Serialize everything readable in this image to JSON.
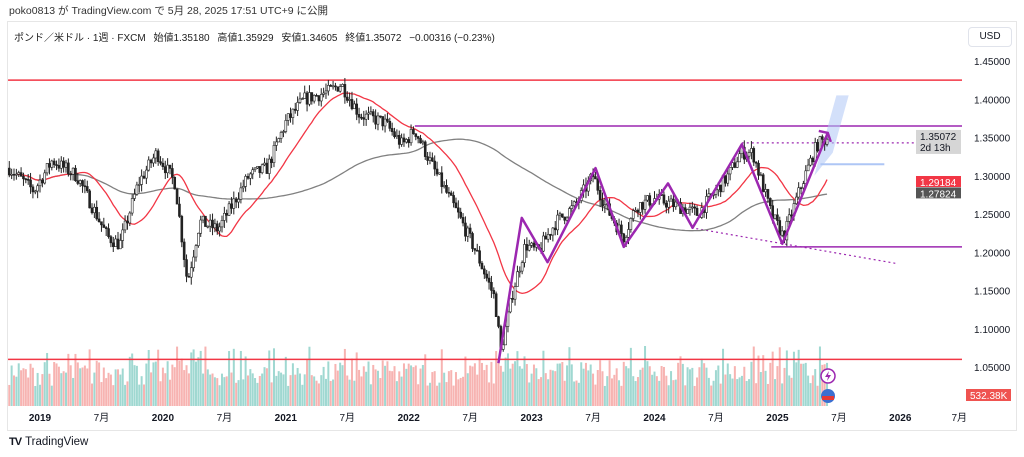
{
  "publish_line": "poko0813 が TradingView.com で 5月 28, 2025 17:51 UTC+9 に公開",
  "legend": {
    "symbol": "ポンド／米ドル · 1週 · FXCM",
    "open": "始値1.35180",
    "high": "高値1.35929",
    "low": "安値1.34605",
    "close": "終値1.35072",
    "change": "−0.00316 (−0.23%)"
  },
  "currency_button": "USD",
  "brand": "TradingView",
  "price_labels": {
    "last": "1.35072",
    "countdown": "2d 13h",
    "ma_fast": "1.29184",
    "ma_slow": "1.27824",
    "volume": "532.38K"
  },
  "colors": {
    "up": "#26a69a",
    "down": "#ef5350",
    "ma_fast": "#f23645",
    "ma_slow": "#808080",
    "annotation": "#9c27b0",
    "level": "#f23645",
    "projection": "#aec6f5"
  },
  "chart_data": {
    "type": "candlestick",
    "title": "GBP/USD Weekly",
    "yticks": [
      "1.45000",
      "1.40000",
      "1.35000",
      "1.30000",
      "1.25000",
      "1.20000",
      "1.15000",
      "1.10000",
      "1.05000"
    ],
    "ylim": [
      1.035,
      1.47
    ],
    "xlim": [
      2018.74,
      2026.5
    ],
    "xticks": [
      {
        "t": 2019,
        "label": "2019"
      },
      {
        "t": 2019.5,
        "label": "7月"
      },
      {
        "t": 2020,
        "label": "2020"
      },
      {
        "t": 2020.5,
        "label": "7月"
      },
      {
        "t": 2021,
        "label": "2021"
      },
      {
        "t": 2021.5,
        "label": "7月"
      },
      {
        "t": 2022,
        "label": "2022"
      },
      {
        "t": 2022.5,
        "label": "7月"
      },
      {
        "t": 2023,
        "label": "2023"
      },
      {
        "t": 2023.5,
        "label": "7月"
      },
      {
        "t": 2024,
        "label": "2024"
      },
      {
        "t": 2024.5,
        "label": "7月"
      },
      {
        "t": 2025,
        "label": "2025"
      },
      {
        "t": 2025.5,
        "label": "7月"
      },
      {
        "t": 2026,
        "label": "2026"
      },
      {
        "t": 2026.48,
        "label": "7月"
      }
    ],
    "price_path": [
      [
        2018.75,
        1.31
      ],
      [
        2018.95,
        1.28
      ],
      [
        2019.1,
        1.32
      ],
      [
        2019.3,
        1.3
      ],
      [
        2019.55,
        1.22
      ],
      [
        2019.65,
        1.21
      ],
      [
        2019.8,
        1.29
      ],
      [
        2019.95,
        1.33
      ],
      [
        2020.1,
        1.29
      ],
      [
        2020.2,
        1.16
      ],
      [
        2020.3,
        1.24
      ],
      [
        2020.45,
        1.23
      ],
      [
        2020.7,
        1.3
      ],
      [
        2020.85,
        1.31
      ],
      [
        2021.0,
        1.37
      ],
      [
        2021.15,
        1.4
      ],
      [
        2021.35,
        1.41
      ],
      [
        2021.45,
        1.42
      ],
      [
        2021.6,
        1.38
      ],
      [
        2021.8,
        1.37
      ],
      [
        2021.95,
        1.34
      ],
      [
        2022.05,
        1.36
      ],
      [
        2022.2,
        1.31
      ],
      [
        2022.4,
        1.25
      ],
      [
        2022.55,
        1.2
      ],
      [
        2022.7,
        1.14
      ],
      [
        2022.75,
        1.07
      ],
      [
        2022.85,
        1.15
      ],
      [
        2022.95,
        1.21
      ],
      [
        2023.05,
        1.2
      ],
      [
        2023.2,
        1.24
      ],
      [
        2023.35,
        1.26
      ],
      [
        2023.5,
        1.3
      ],
      [
        2023.6,
        1.26
      ],
      [
        2023.75,
        1.22
      ],
      [
        2023.85,
        1.26
      ],
      [
        2024.0,
        1.27
      ],
      [
        2024.2,
        1.26
      ],
      [
        2024.35,
        1.25
      ],
      [
        2024.5,
        1.28
      ],
      [
        2024.6,
        1.3
      ],
      [
        2024.7,
        1.33
      ],
      [
        2024.8,
        1.33
      ],
      [
        2024.95,
        1.25
      ],
      [
        2025.05,
        1.22
      ],
      [
        2025.2,
        1.29
      ],
      [
        2025.32,
        1.34
      ],
      [
        2025.41,
        1.35
      ]
    ],
    "ma_fast_period": 20,
    "ma_slow_period": 100,
    "levels": [
      {
        "price": 1.425,
        "from": 2018.74,
        "kind": "red"
      },
      {
        "price": 1.06,
        "from": 2018.74,
        "kind": "red"
      },
      {
        "price": 1.365,
        "from": 2022.05,
        "kind": "purple"
      },
      {
        "price": 1.207,
        "from": 2024.95,
        "kind": "purple"
      }
    ],
    "zigzag": [
      [
        2022.73,
        1.055
      ],
      [
        2022.92,
        1.245
      ],
      [
        2023.13,
        1.187
      ],
      [
        2023.52,
        1.31
      ],
      [
        2023.75,
        1.207
      ],
      [
        2024.11,
        1.29
      ],
      [
        2024.31,
        1.232
      ],
      [
        2024.71,
        1.341
      ],
      [
        2025.04,
        1.211
      ],
      [
        2025.41,
        1.356
      ]
    ],
    "dotted_lines": [
      [
        [
          2024.71,
          1.343
        ],
        [
          2026.5,
          1.343
        ]
      ],
      [
        [
          2024.3,
          1.232
        ],
        [
          2025.98,
          1.185
        ]
      ]
    ]
  }
}
